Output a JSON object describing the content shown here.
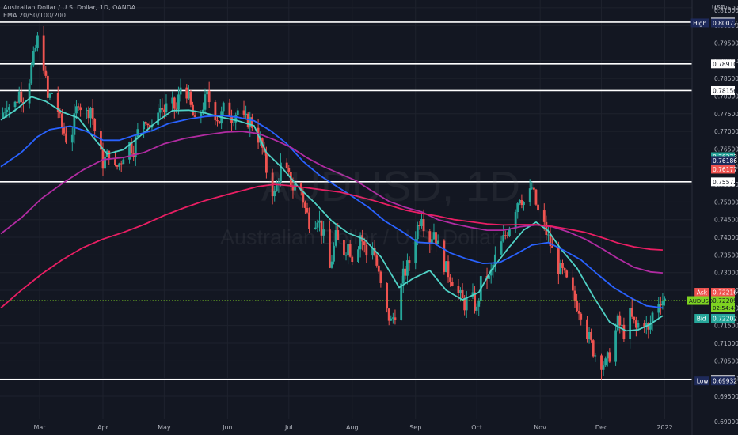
{
  "header": {
    "symbol_title": "Australian Dollar / U.S. Dollar, 1D, OANDA",
    "indicator": "EMA 20/50/100/200",
    "currency": "USD"
  },
  "watermark": {
    "ticker": "AUDUSD, 1D",
    "name": "Australian Dollar / U.S. Dollar"
  },
  "colors": {
    "background": "#131722",
    "grid": "#1e222d",
    "up": "#26a69a",
    "down": "#ef5350",
    "ema20": "#4fd1c5",
    "ema50": "#2962ff",
    "ema100": "#b02ba1",
    "ema200": "#e91e63",
    "hline": "#ffffff",
    "last": "#7ed321"
  },
  "chart_data": {
    "type": "candlestick",
    "x_axis_labels": [
      {
        "label": "Mar",
        "day": 19
      },
      {
        "label": "Apr",
        "day": 50
      },
      {
        "label": "May",
        "day": 80
      },
      {
        "label": "Jun",
        "day": 111
      },
      {
        "label": "Jul",
        "day": 141
      },
      {
        "label": "Aug",
        "day": 172
      },
      {
        "label": "Sep",
        "day": 203
      },
      {
        "label": "Oct",
        "day": 233
      },
      {
        "label": "Nov",
        "day": 264
      },
      {
        "label": "Dec",
        "day": 294
      },
      {
        "label": "2022",
        "day": 325
      }
    ],
    "y_range": [
      0.6885,
      0.8072
    ],
    "y_ticks": [
      0.695,
      0.7,
      0.705,
      0.71,
      0.715,
      0.72,
      0.725,
      0.73,
      0.735,
      0.74,
      0.745,
      0.75,
      0.755,
      0.76,
      0.765,
      0.77,
      0.775,
      0.78,
      0.785,
      0.79,
      0.795,
      0.8,
      0.805
    ],
    "y_tick_labels": [
      "0.69500",
      "0.70000",
      "0.70500",
      "0.71000",
      "0.71500",
      "0.72000",
      "0.72500",
      "0.73000",
      "0.73500",
      "0.74000",
      "0.74500",
      "0.75000",
      "0.75500",
      "0.76000",
      "0.76500",
      "0.77000",
      "0.77500",
      "0.78000",
      "0.78500",
      "0.79000",
      "0.79500",
      "0.80000",
      "0.80500"
    ],
    "y_top_label": "0.81000",
    "y_bottom_label": "0.69000",
    "ema_series": [
      {
        "name": "EMA 20",
        "color": "#4fd1c5",
        "points": [
          [
            0,
            0.7732
          ],
          [
            8,
            0.7764
          ],
          [
            15,
            0.7798
          ],
          [
            22,
            0.7785
          ],
          [
            30,
            0.7755
          ],
          [
            38,
            0.7738
          ],
          [
            45,
            0.7685
          ],
          [
            52,
            0.7636
          ],
          [
            60,
            0.7648
          ],
          [
            68,
            0.7686
          ],
          [
            76,
            0.7726
          ],
          [
            84,
            0.7759
          ],
          [
            92,
            0.776
          ],
          [
            100,
            0.7752
          ],
          [
            108,
            0.774
          ],
          [
            116,
            0.773
          ],
          [
            124,
            0.7716
          ],
          [
            130,
            0.764
          ],
          [
            138,
            0.7595
          ],
          [
            146,
            0.754
          ],
          [
            154,
            0.7496
          ],
          [
            162,
            0.7446
          ],
          [
            170,
            0.7412
          ],
          [
            178,
            0.7394
          ],
          [
            186,
            0.7345
          ],
          [
            195,
            0.7258
          ],
          [
            202,
            0.7284
          ],
          [
            210,
            0.7306
          ],
          [
            218,
            0.725
          ],
          [
            226,
            0.7223
          ],
          [
            234,
            0.7244
          ],
          [
            240,
            0.7306
          ],
          [
            248,
            0.7366
          ],
          [
            256,
            0.7421
          ],
          [
            262,
            0.7443
          ],
          [
            268,
            0.7418
          ],
          [
            274,
            0.7368
          ],
          [
            282,
            0.7313
          ],
          [
            290,
            0.7233
          ],
          [
            298,
            0.716
          ],
          [
            306,
            0.7135
          ],
          [
            312,
            0.7138
          ],
          [
            318,
            0.7154
          ],
          [
            324,
            0.7178
          ]
        ]
      },
      {
        "name": "EMA 50",
        "color": "#2962ff",
        "points": [
          [
            0,
            0.76
          ],
          [
            10,
            0.764
          ],
          [
            18,
            0.7685
          ],
          [
            24,
            0.7705
          ],
          [
            34,
            0.7715
          ],
          [
            42,
            0.77
          ],
          [
            50,
            0.7675
          ],
          [
            58,
            0.7675
          ],
          [
            66,
            0.769
          ],
          [
            74,
            0.7702
          ],
          [
            82,
            0.7722
          ],
          [
            92,
            0.7735
          ],
          [
            100,
            0.7742
          ],
          [
            108,
            0.7745
          ],
          [
            116,
            0.774
          ],
          [
            124,
            0.773
          ],
          [
            132,
            0.7702
          ],
          [
            140,
            0.7665
          ],
          [
            148,
            0.7615
          ],
          [
            156,
            0.7576
          ],
          [
            164,
            0.7546
          ],
          [
            172,
            0.7516
          ],
          [
            180,
            0.7485
          ],
          [
            188,
            0.7446
          ],
          [
            196,
            0.7418
          ],
          [
            204,
            0.7386
          ],
          [
            212,
            0.7383
          ],
          [
            220,
            0.7356
          ],
          [
            228,
            0.7339
          ],
          [
            236,
            0.7326
          ],
          [
            244,
            0.7328
          ],
          [
            252,
            0.7352
          ],
          [
            260,
            0.7378
          ],
          [
            268,
            0.7385
          ],
          [
            276,
            0.7362
          ],
          [
            284,
            0.7336
          ],
          [
            292,
            0.7296
          ],
          [
            300,
            0.7258
          ],
          [
            308,
            0.723
          ],
          [
            316,
            0.7206
          ],
          [
            324,
            0.72
          ]
        ]
      },
      {
        "name": "EMA 100",
        "color": "#b02ba1",
        "points": [
          [
            0,
            0.741
          ],
          [
            10,
            0.7455
          ],
          [
            20,
            0.751
          ],
          [
            30,
            0.7552
          ],
          [
            40,
            0.759
          ],
          [
            50,
            0.762
          ],
          [
            60,
            0.7626
          ],
          [
            70,
            0.764
          ],
          [
            80,
            0.7665
          ],
          [
            90,
            0.768
          ],
          [
            100,
            0.769
          ],
          [
            110,
            0.7698
          ],
          [
            118,
            0.77
          ],
          [
            126,
            0.7694
          ],
          [
            134,
            0.7676
          ],
          [
            142,
            0.7655
          ],
          [
            150,
            0.7625
          ],
          [
            158,
            0.76
          ],
          [
            166,
            0.758
          ],
          [
            174,
            0.756
          ],
          [
            182,
            0.753
          ],
          [
            190,
            0.7502
          ],
          [
            198,
            0.7485
          ],
          [
            206,
            0.7472
          ],
          [
            214,
            0.745
          ],
          [
            222,
            0.7438
          ],
          [
            230,
            0.7428
          ],
          [
            238,
            0.742
          ],
          [
            246,
            0.742
          ],
          [
            254,
            0.743
          ],
          [
            262,
            0.7435
          ],
          [
            270,
            0.743
          ],
          [
            278,
            0.7415
          ],
          [
            286,
            0.7395
          ],
          [
            294,
            0.7369
          ],
          [
            302,
            0.734
          ],
          [
            310,
            0.7315
          ],
          [
            318,
            0.7302
          ],
          [
            324,
            0.7299
          ]
        ]
      },
      {
        "name": "EMA 200",
        "color": "#e91e63",
        "points": [
          [
            0,
            0.72
          ],
          [
            10,
            0.725
          ],
          [
            20,
            0.7296
          ],
          [
            30,
            0.7336
          ],
          [
            40,
            0.737
          ],
          [
            50,
            0.7395
          ],
          [
            60,
            0.7414
          ],
          [
            70,
            0.7436
          ],
          [
            80,
            0.7462
          ],
          [
            90,
            0.7484
          ],
          [
            100,
            0.7504
          ],
          [
            110,
            0.752
          ],
          [
            118,
            0.7532
          ],
          [
            126,
            0.7544
          ],
          [
            134,
            0.755
          ],
          [
            142,
            0.7546
          ],
          [
            150,
            0.754
          ],
          [
            158,
            0.7534
          ],
          [
            166,
            0.7528
          ],
          [
            174,
            0.7517
          ],
          [
            182,
            0.7505
          ],
          [
            190,
            0.7491
          ],
          [
            198,
            0.7477
          ],
          [
            206,
            0.7468
          ],
          [
            214,
            0.746
          ],
          [
            222,
            0.745
          ],
          [
            230,
            0.7444
          ],
          [
            238,
            0.7438
          ],
          [
            246,
            0.7435
          ],
          [
            254,
            0.7436
          ],
          [
            262,
            0.7436
          ],
          [
            270,
            0.7431
          ],
          [
            278,
            0.7423
          ],
          [
            286,
            0.7414
          ],
          [
            294,
            0.74
          ],
          [
            302,
            0.7384
          ],
          [
            310,
            0.7373
          ],
          [
            318,
            0.7366
          ],
          [
            324,
            0.7364
          ]
        ]
      }
    ],
    "close_path": [
      [
        0,
        0.774
      ],
      [
        3,
        0.778
      ],
      [
        6,
        0.776
      ],
      [
        9,
        0.781
      ],
      [
        12,
        0.779
      ],
      [
        15,
        0.788
      ],
      [
        18,
        0.796
      ],
      [
        20,
        0.794
      ],
      [
        23,
        0.779
      ],
      [
        26,
        0.782
      ],
      [
        29,
        0.773
      ],
      [
        32,
        0.768
      ],
      [
        35,
        0.77
      ],
      [
        38,
        0.779
      ],
      [
        41,
        0.774
      ],
      [
        44,
        0.777
      ],
      [
        47,
        0.767
      ],
      [
        50,
        0.761
      ],
      [
        53,
        0.764
      ],
      [
        56,
        0.759
      ],
      [
        59,
        0.762
      ],
      [
        62,
        0.767
      ],
      [
        65,
        0.765
      ],
      [
        68,
        0.772
      ],
      [
        71,
        0.774
      ],
      [
        74,
        0.77
      ],
      [
        77,
        0.777
      ],
      [
        80,
        0.776
      ],
      [
        83,
        0.778
      ],
      [
        86,
        0.776
      ],
      [
        89,
        0.786
      ],
      [
        92,
        0.779
      ],
      [
        95,
        0.772
      ],
      [
        98,
        0.776
      ],
      [
        101,
        0.78
      ],
      [
        104,
        0.776
      ],
      [
        107,
        0.773
      ],
      [
        110,
        0.778
      ],
      [
        113,
        0.774
      ],
      [
        116,
        0.776
      ],
      [
        119,
        0.773
      ],
      [
        122,
        0.773
      ],
      [
        125,
        0.77
      ],
      [
        128,
        0.765
      ],
      [
        131,
        0.756
      ],
      [
        134,
        0.752
      ],
      [
        137,
        0.76
      ],
      [
        140,
        0.758
      ],
      [
        143,
        0.754
      ],
      [
        146,
        0.756
      ],
      [
        149,
        0.748
      ],
      [
        152,
        0.743
      ],
      [
        155,
        0.746
      ],
      [
        158,
        0.74
      ],
      [
        161,
        0.731
      ],
      [
        164,
        0.74
      ],
      [
        167,
        0.735
      ],
      [
        170,
        0.738
      ],
      [
        173,
        0.733
      ],
      [
        176,
        0.741
      ],
      [
        179,
        0.735
      ],
      [
        182,
        0.738
      ],
      [
        185,
        0.729
      ],
      [
        188,
        0.72
      ],
      [
        191,
        0.716
      ],
      [
        194,
        0.72
      ],
      [
        197,
        0.729
      ],
      [
        200,
        0.733
      ],
      [
        203,
        0.741
      ],
      [
        206,
        0.747
      ],
      [
        209,
        0.738
      ],
      [
        212,
        0.742
      ],
      [
        215,
        0.735
      ],
      [
        218,
        0.731
      ],
      [
        221,
        0.728
      ],
      [
        224,
        0.724
      ],
      [
        227,
        0.721
      ],
      [
        230,
        0.724
      ],
      [
        233,
        0.719
      ],
      [
        236,
        0.731
      ],
      [
        239,
        0.728
      ],
      [
        242,
        0.734
      ],
      [
        245,
        0.738
      ],
      [
        248,
        0.742
      ],
      [
        251,
        0.747
      ],
      [
        254,
        0.752
      ],
      [
        257,
        0.749
      ],
      [
        260,
        0.754
      ],
      [
        263,
        0.747
      ],
      [
        266,
        0.743
      ],
      [
        269,
        0.738
      ],
      [
        272,
        0.732
      ],
      [
        275,
        0.73
      ],
      [
        278,
        0.726
      ],
      [
        281,
        0.722
      ],
      [
        284,
        0.719
      ],
      [
        287,
        0.713
      ],
      [
        290,
        0.708
      ],
      [
        293,
        0.705
      ],
      [
        296,
        0.704
      ],
      [
        299,
        0.708
      ],
      [
        302,
        0.716
      ],
      [
        305,
        0.713
      ],
      [
        308,
        0.718
      ],
      [
        311,
        0.714
      ],
      [
        314,
        0.718
      ],
      [
        317,
        0.713
      ],
      [
        320,
        0.721
      ],
      [
        323,
        0.7225
      ],
      [
        325,
        0.7221
      ]
    ],
    "horizontal_levels": [
      {
        "value": 0.80094,
        "label": "0.80094"
      },
      {
        "value": 0.7891,
        "label": "0.78910"
      },
      {
        "value": 0.78156,
        "label": "0.78156"
      },
      {
        "value": 0.75572,
        "label": "0.75572"
      },
      {
        "value": 0.69974,
        "label": "0.69974"
      }
    ],
    "price_badges": [
      {
        "tag": "High",
        "value": 0.80072,
        "label": "0.80072",
        "color": "#1e2a5a",
        "text": "#ffffff"
      },
      {
        "tag": "",
        "value": 0.76273,
        "label": "0.76273",
        "color": "#26a69a",
        "text": "#ffffff"
      },
      {
        "tag": "",
        "value": 0.76186,
        "label": "0.76186",
        "color": "#1e2a5a",
        "text": "#ffffff"
      },
      {
        "tag": "",
        "value": 0.76177,
        "label": "0.76177",
        "color": "#ef5350",
        "text": "#ffffff"
      },
      {
        "tag": "Ask",
        "value": 0.72216,
        "label": "0.72216",
        "color": "#ef5350",
        "text": "#ffffff"
      },
      {
        "tag": "Bid",
        "value": 0.72202,
        "label": "0.72202",
        "color": "#26a69a",
        "text": "#ffffff"
      },
      {
        "tag": "Low",
        "value": 0.69932,
        "label": "0.69932",
        "color": "#1e2a5a",
        "text": "#ffffff"
      }
    ],
    "last_price": {
      "symbol": "AUDUSD",
      "value": 0.72209,
      "label": "0.72209",
      "countdown": "02:54:43"
    }
  }
}
